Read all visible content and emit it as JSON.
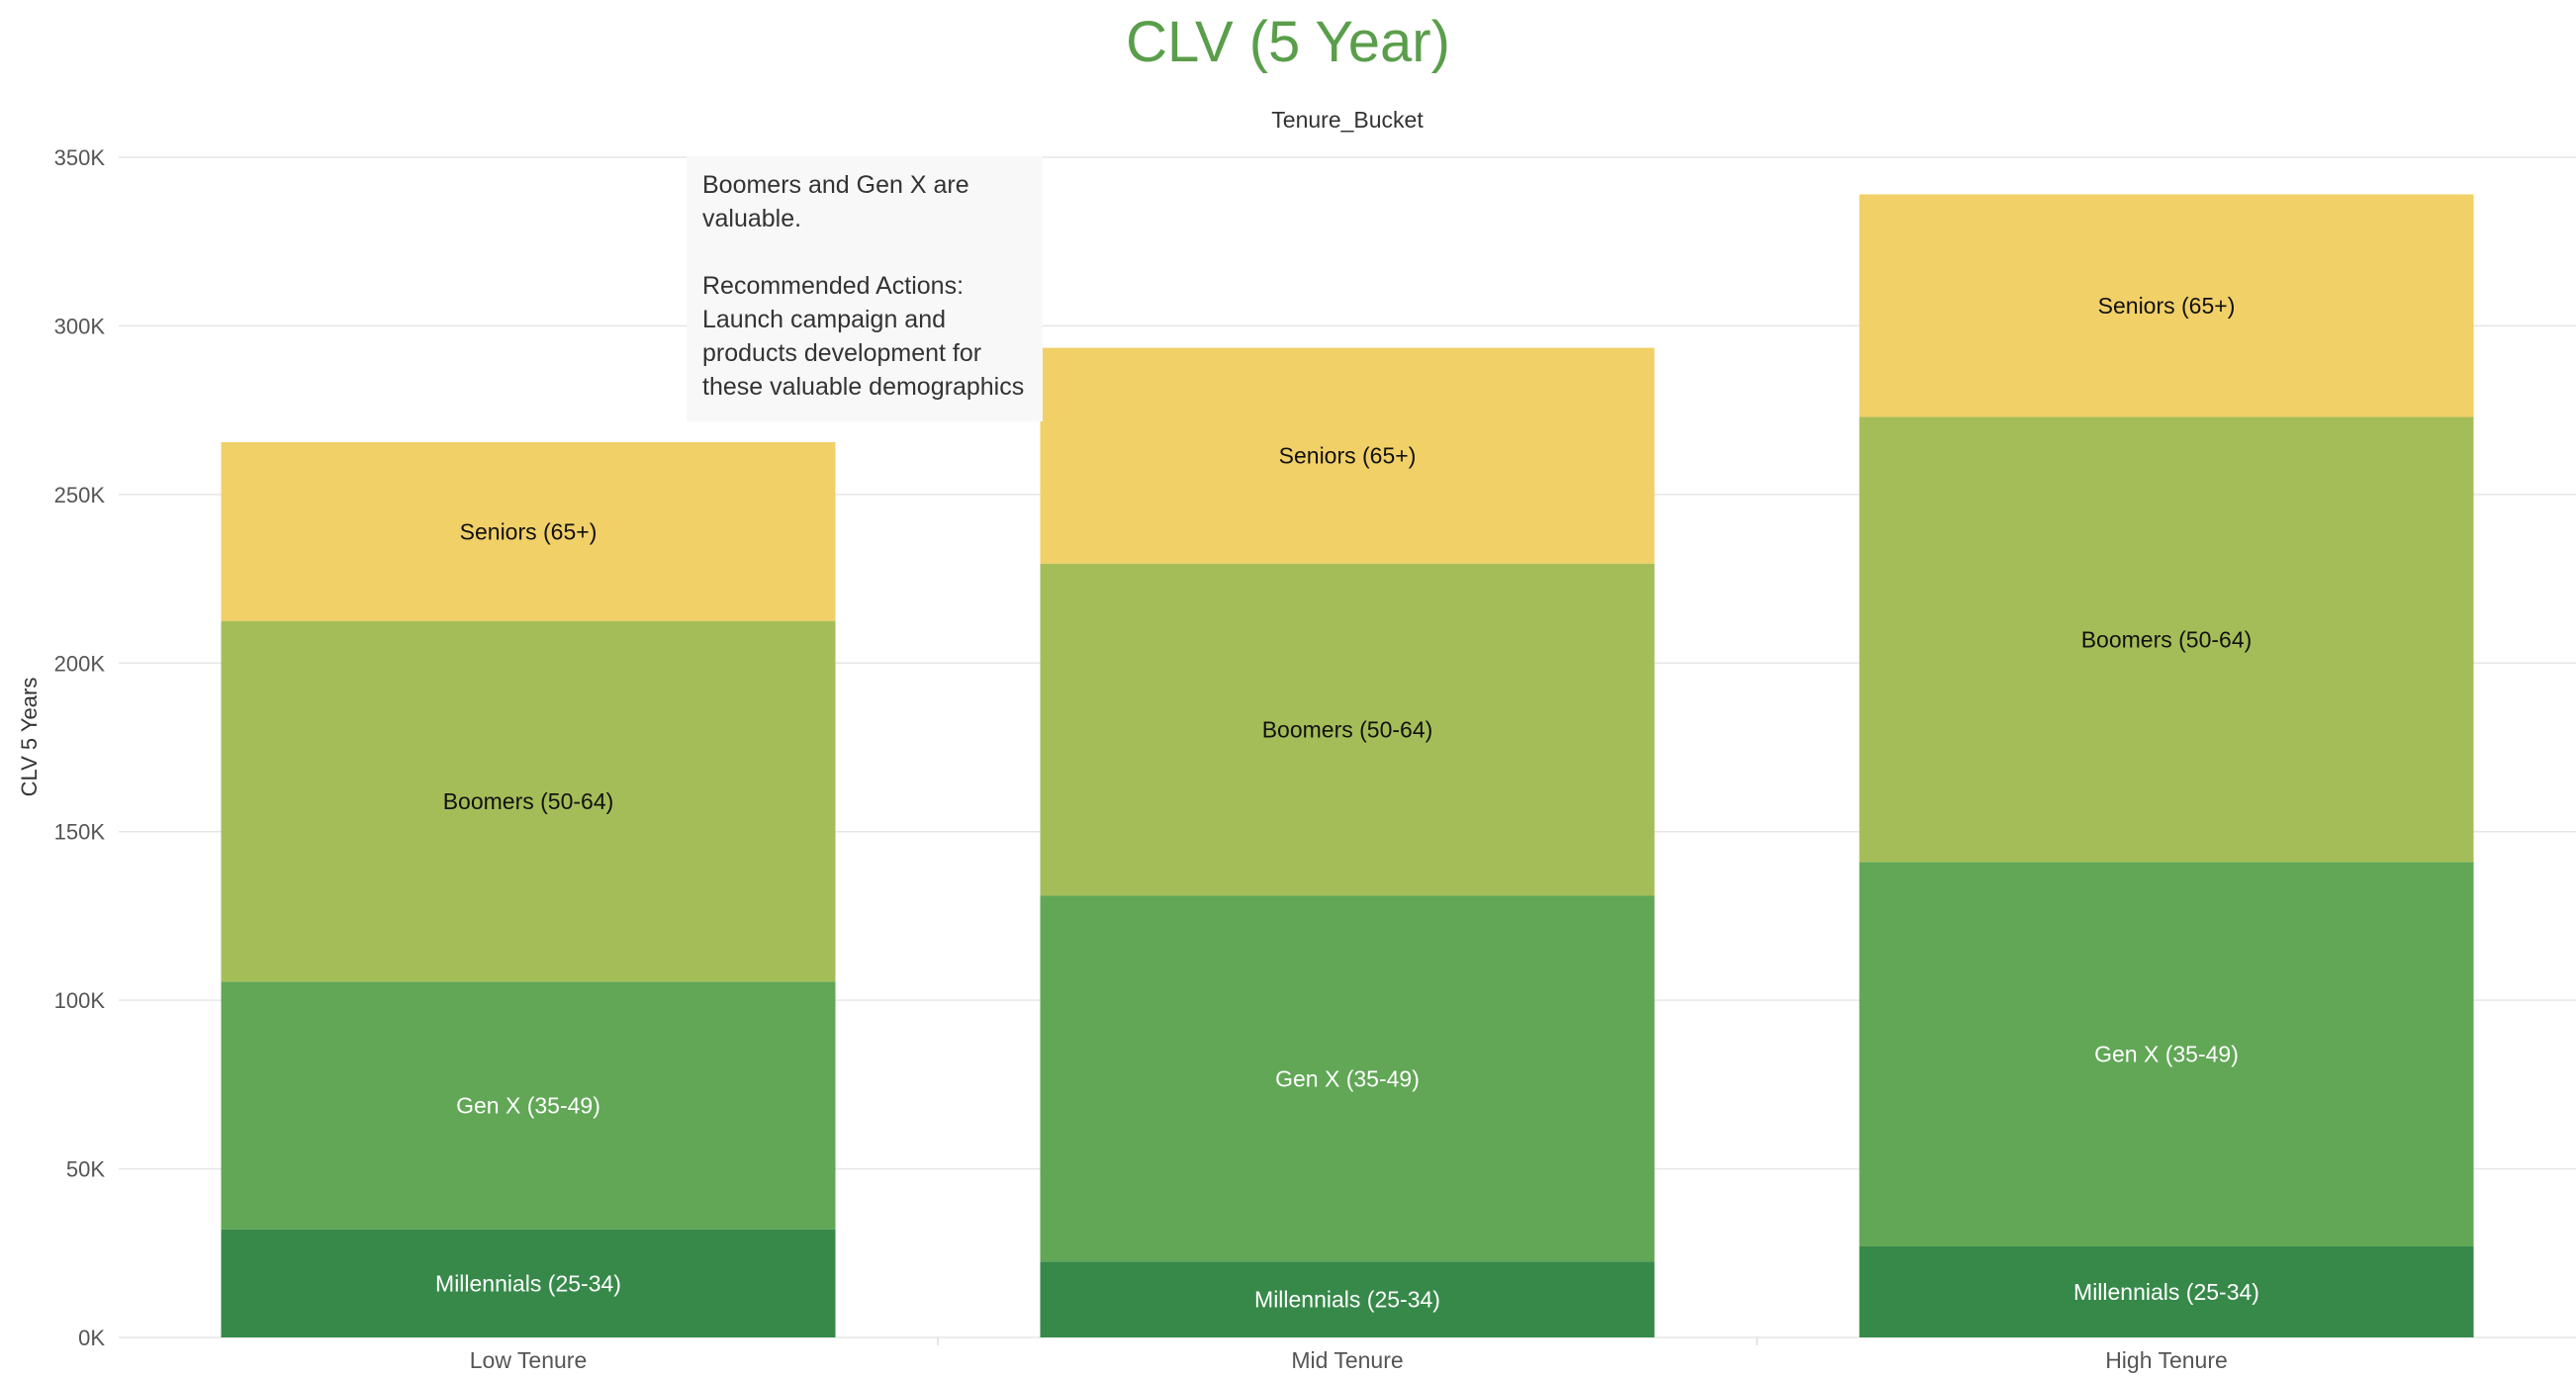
{
  "chart_data": {
    "type": "bar",
    "stacked": true,
    "title": "CLV (5 Year)",
    "legend_title": "Tenure_Bucket",
    "xlabel": "",
    "ylabel": "CLV 5 Years",
    "ylim": [
      0,
      350000
    ],
    "yticks": [
      0,
      50000,
      100000,
      150000,
      200000,
      250000,
      300000,
      350000
    ],
    "ytick_labels": [
      "0K",
      "50K",
      "100K",
      "150K",
      "200K",
      "250K",
      "300K",
      "350K"
    ],
    "grid": true,
    "categories": [
      "Low Tenure",
      "Mid Tenure",
      "High Tenure"
    ],
    "series": [
      {
        "name": "Millennials (25-34)",
        "color": "#37894a",
        "label_color": "#ffffff",
        "values": [
          32000,
          22500,
          27000
        ]
      },
      {
        "name": "Gen X (35-49)",
        "color": "#61a756",
        "label_color": "#ffffff",
        "values": [
          73500,
          108500,
          114000
        ]
      },
      {
        "name": "Boomers (50-64)",
        "color": "#a5bd58",
        "label_color": "#111111",
        "values": [
          107000,
          98500,
          132000
        ]
      },
      {
        "name": "Seniors (65+)",
        "color": "#f1d068",
        "label_color": "#111111",
        "values": [
          53000,
          64000,
          66000
        ]
      }
    ],
    "totals": [
      265500,
      293500,
      339000
    ],
    "title_color": "#5a9e4b",
    "annotation": {
      "line1": "Boomers and Gen X are valuable.",
      "line2": "Recommended Actions: Launch campaign and products development for these valuable demographics"
    }
  }
}
